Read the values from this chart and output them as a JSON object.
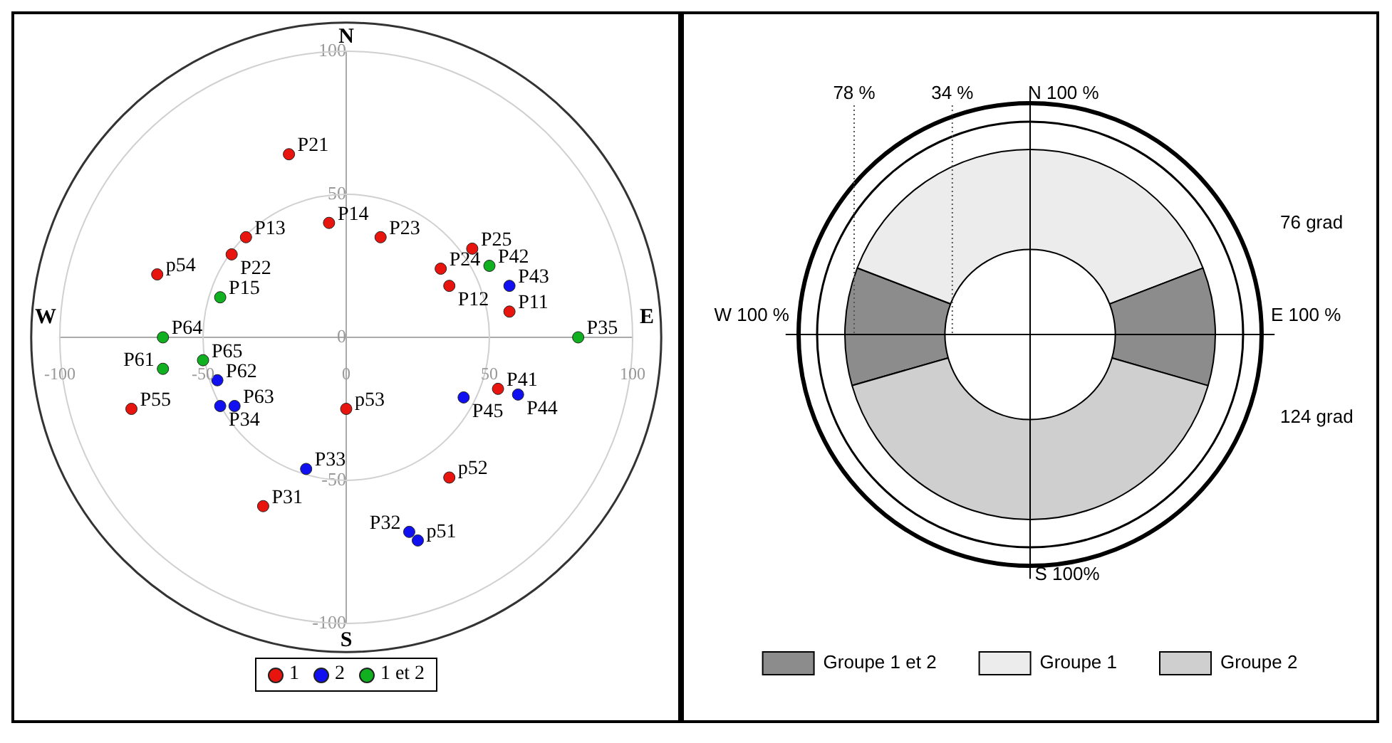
{
  "chart_data": [
    {
      "type": "scatter",
      "xlim": [
        -100,
        100
      ],
      "ylim": [
        -100,
        100
      ],
      "xticks": [
        -100,
        -50,
        0,
        50,
        100
      ],
      "yticks": [
        -100,
        -50,
        0,
        50,
        100
      ],
      "legend": "bottom",
      "marker": "circle",
      "grid": false,
      "series": [
        {
          "name": "1",
          "color": "#e8150f",
          "x": [
            -20,
            -35,
            -40,
            -6,
            12,
            44,
            33,
            36,
            57,
            -66,
            -75,
            0,
            36,
            -29,
            53
          ],
          "values": [
            64,
            35,
            29,
            40,
            35,
            31,
            24,
            18,
            9,
            22,
            -25,
            -25,
            -49,
            -59,
            -18
          ]
        },
        {
          "name": "2",
          "color": "#1010f0",
          "x": [
            57,
            -45,
            -39,
            -44,
            -14,
            41,
            60,
            25,
            22
          ],
          "values": [
            18,
            -15,
            -24,
            -24,
            -46,
            -21,
            -20,
            -71,
            -68
          ]
        },
        {
          "name": "1 et 2",
          "color": "#10b020",
          "x": [
            50,
            81,
            -44,
            -64,
            -50,
            -64
          ],
          "values": [
            25,
            0,
            14,
            0,
            -8,
            -11
          ]
        }
      ],
      "annotations": [
        "N",
        "S",
        "W",
        "E",
        {
          "text": "P21",
          "x": -20,
          "y": 64
        },
        {
          "text": "P13",
          "x": -35,
          "y": 35
        },
        {
          "text": "P22",
          "x": -40,
          "y": 29
        },
        {
          "text": "P14",
          "x": -6,
          "y": 40
        },
        {
          "text": "P23",
          "x": 12,
          "y": 35
        },
        {
          "text": "P25",
          "x": 44,
          "y": 31
        },
        {
          "text": "P24",
          "x": 33,
          "y": 24
        },
        {
          "text": "P12",
          "x": 36,
          "y": 18
        },
        {
          "text": "P11",
          "x": 57,
          "y": 9
        },
        {
          "text": "p54",
          "x": -66,
          "y": 22
        },
        {
          "text": "P55",
          "x": -75,
          "y": -25
        },
        {
          "text": "p53",
          "x": 0,
          "y": -25
        },
        {
          "text": "p52",
          "x": 36,
          "y": -49
        },
        {
          "text": "P31",
          "x": -29,
          "y": -59
        },
        {
          "text": "P41",
          "x": 53,
          "y": -18
        },
        {
          "text": "P43",
          "x": 57,
          "y": 18
        },
        {
          "text": "P62",
          "x": -45,
          "y": -15
        },
        {
          "text": "P63",
          "x": -39,
          "y": -24
        },
        {
          "text": "P34",
          "x": -44,
          "y": -24
        },
        {
          "text": "P33",
          "x": -14,
          "y": -46
        },
        {
          "text": "P45",
          "x": 41,
          "y": -21
        },
        {
          "text": "P44",
          "x": 60,
          "y": -20
        },
        {
          "text": "p51",
          "x": 25,
          "y": -71
        },
        {
          "text": "P32",
          "x": 22,
          "y": -68
        },
        {
          "text": "P42",
          "x": 50,
          "y": 25
        },
        {
          "text": "P35",
          "x": 81,
          "y": 0
        },
        {
          "text": "P15",
          "x": -44,
          "y": 14
        },
        {
          "text": "P64",
          "x": -64,
          "y": 0
        },
        {
          "text": "P65",
          "x": -50,
          "y": -8
        },
        {
          "text": "P61",
          "x": -64,
          "y": -11
        }
      ]
    },
    {
      "type": "donut",
      "categories": [
        "Groupe 1 et 2",
        "Groupe 1",
        null,
        "Groupe 2"
      ],
      "values": [
        10.3,
        38.3,
        10.3,
        41.1
      ],
      "colors": [
        "#8c8c8c",
        "#ececec",
        "#8c8c8c",
        "#cfcfcf"
      ],
      "legend": "bottom",
      "annotations": [
        "78 %",
        "34 %",
        "N 100 %",
        "76 grad",
        "W 100 %",
        "E 100 %",
        "124 grad",
        "S 100%"
      ]
    }
  ]
}
